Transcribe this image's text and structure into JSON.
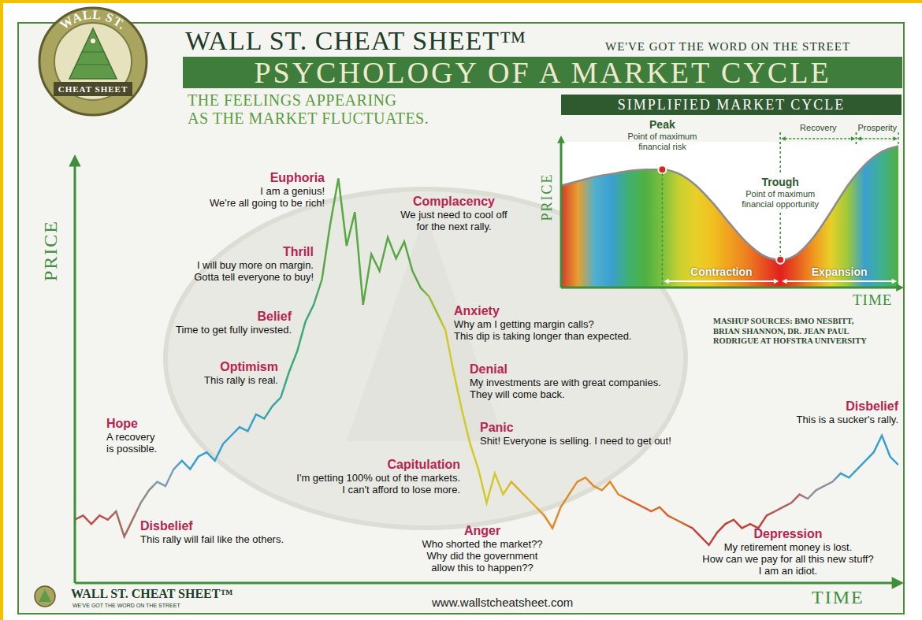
{
  "header": {
    "logo_top": "WALL ST.",
    "logo_bottom": "CHEAT SHEET",
    "brand": "WALL ST. CHEAT SHEET™",
    "tagline": "WE'VE GOT THE WORD ON THE STREET",
    "banner": "PSYCHOLOGY OF A MARKET CYCLE",
    "subtitle": [
      "THE FEELINGS APPEARING",
      "AS THE MARKET FLUCTUATES."
    ]
  },
  "sources": [
    "MASHUP SOURCES: BMO NESBITT,",
    "BRIAN SHANNON, DR. JEAN PAUL",
    "RODRIGUE AT HOFSTRA UNIVERSITY"
  ],
  "footer": {
    "brand": "WALL ST. CHEAT SHEET™",
    "tagline": "WE'VE GOT THE WORD ON THE STREET",
    "url": "www.wallstcheatsheet.com"
  },
  "chart_data": [
    {
      "type": "line",
      "x_label": "TIME",
      "y_label": "PRICE",
      "xlim": [
        0,
        100
      ],
      "ylim": [
        0,
        100
      ],
      "tick_labels": false,
      "x": [
        0,
        1,
        2,
        3,
        4,
        5,
        6,
        7,
        8,
        9,
        10,
        11,
        12,
        13,
        14,
        15,
        16,
        17,
        18,
        19,
        20,
        21,
        22,
        23,
        24,
        25,
        26,
        27,
        28,
        29,
        30,
        31,
        32,
        33,
        34,
        35,
        36,
        37,
        38,
        39,
        40,
        41,
        42,
        43,
        44,
        45,
        46,
        47,
        48,
        49,
        50,
        51,
        52,
        53,
        54,
        55,
        56,
        57,
        58,
        59,
        60,
        61,
        62,
        63,
        64,
        65,
        66,
        67,
        68,
        69,
        70,
        71,
        72,
        73,
        74,
        75,
        76,
        77,
        78,
        79,
        80,
        81,
        82,
        83,
        84,
        85,
        86,
        87,
        88,
        89,
        90,
        91,
        92,
        93,
        94,
        95,
        96,
        97,
        98,
        99,
        100
      ],
      "values": [
        15,
        16,
        14,
        16,
        15,
        17,
        11,
        15,
        19,
        22,
        24,
        23,
        27,
        29,
        27,
        30,
        31,
        29,
        33,
        35,
        37,
        36,
        40,
        39,
        42,
        44,
        50,
        55,
        62,
        66,
        72,
        85,
        96,
        80,
        88,
        66,
        78,
        74,
        82,
        77,
        81,
        74,
        70,
        68,
        64,
        60,
        50,
        41,
        33,
        27,
        19,
        26,
        21,
        24,
        22,
        20,
        18,
        16,
        13,
        18,
        21,
        24,
        25,
        23,
        22,
        24,
        21,
        20,
        19,
        18,
        17,
        18,
        16,
        15,
        14,
        13,
        11,
        9,
        12,
        14,
        15,
        13,
        14,
        13,
        16,
        17,
        18,
        19,
        21,
        20,
        22,
        23,
        24,
        26,
        25,
        27,
        29,
        31,
        35,
        30,
        28
      ],
      "colors": [
        "#c0504d",
        "#c0504d",
        "#c0504d",
        "#c0504d",
        "#c0504d",
        "#a86a60",
        "#a86a60",
        "#a86a60",
        "#8c8c8c",
        "#8c8c8c",
        "#7f9fb5",
        "#7f9fb5",
        "#7f9fb5",
        "#3a9fd0",
        "#3a9fd0",
        "#3a9fd0",
        "#3a9fd0",
        "#3a9fd0",
        "#3a9fd0",
        "#3a9fd0",
        "#3a9fd0",
        "#3a9fd0",
        "#3a9fd0",
        "#3aa6a0",
        "#3aa6a0",
        "#3aa6a0",
        "#3daa7a",
        "#3daa7a",
        "#3daa7a",
        "#3daa7a",
        "#5aa845",
        "#5aa845",
        "#5aa845",
        "#5aa845",
        "#5aa845",
        "#5aa845",
        "#5aa845",
        "#5aa845",
        "#5aa845",
        "#5aa845",
        "#5aa845",
        "#5aa845",
        "#5aa845",
        "#9cbc3a",
        "#9cbc3a",
        "#d4c92a",
        "#d4c92a",
        "#d4c92a",
        "#d4c92a",
        "#d4c92a",
        "#d4c92a",
        "#d4c92a",
        "#d4c92a",
        "#e0b02a",
        "#e0b02a",
        "#e0b02a",
        "#e0b02a",
        "#e08a2a",
        "#e08a2a",
        "#e08a2a",
        "#e08a2a",
        "#e08a2a",
        "#e08a2a",
        "#e08a2a",
        "#e08a2a",
        "#e08a2a",
        "#e08a2a",
        "#d9662a",
        "#d9662a",
        "#d9662a",
        "#d9662a",
        "#d9662a",
        "#d9662a",
        "#d9662a",
        "#d9662a",
        "#c0433a",
        "#c0433a",
        "#c0433a",
        "#c0433a",
        "#c0433a",
        "#c0433a",
        "#c0433a",
        "#c0433a",
        "#c0433a",
        "#c0433a",
        "#b06060",
        "#b06060",
        "#b06060",
        "#b06060",
        "#9090a0",
        "#9090a0",
        "#9090a0",
        "#9090a0",
        "#3a9fd0",
        "#3a9fd0",
        "#3a9fd0",
        "#3a9fd0",
        "#3a9fd0",
        "#3a9fd0",
        "#3a9fd0",
        "#3a9fd0"
      ],
      "annotations": [
        {
          "label": "Disbelief",
          "text": [
            "This rally will fail like the others."
          ]
        },
        {
          "label": "Hope",
          "text": [
            "A recovery",
            "is possible."
          ]
        },
        {
          "label": "Optimism",
          "text": [
            "This rally is real."
          ]
        },
        {
          "label": "Belief",
          "text": [
            "Time to get fully invested."
          ]
        },
        {
          "label": "Thrill",
          "text": [
            "I will buy more on margin.",
            "Gotta tell everyone to buy!"
          ]
        },
        {
          "label": "Euphoria",
          "text": [
            "I am a genius!",
            "We're all going to be rich!"
          ]
        },
        {
          "label": "Complacency",
          "text": [
            "We just need to cool off",
            "for the next rally."
          ]
        },
        {
          "label": "Anxiety",
          "text": [
            "Why am I getting margin calls?",
            "This dip is taking longer than expected."
          ]
        },
        {
          "label": "Denial",
          "text": [
            "My investments are with great companies.",
            "They will come back."
          ]
        },
        {
          "label": "Panic",
          "text": [
            "Shit! Everyone is selling. I need to get out!"
          ]
        },
        {
          "label": "Capitulation",
          "text": [
            "I'm getting 100% out of the markets.",
            "I can't afford to lose more."
          ]
        },
        {
          "label": "Anger",
          "text": [
            "Who shorted the market??",
            "Why did the government",
            "allow this to happen??"
          ]
        },
        {
          "label": "Depression",
          "text": [
            "My retirement money is lost.",
            "How can we pay for all this new stuff?",
            "I am an idiot."
          ]
        },
        {
          "label": "Disbelief",
          "text": [
            "This is a sucker's rally."
          ]
        }
      ]
    },
    {
      "type": "area",
      "title": "SIMPLIFIED MARKET CYCLE",
      "x_label": "TIME",
      "y_label": "PRICE",
      "xlim": [
        0,
        20
      ],
      "ylim": [
        0,
        100
      ],
      "tick_labels": false,
      "x": [
        0,
        1,
        2,
        3,
        4,
        5,
        6,
        7,
        8,
        9,
        10,
        11,
        12,
        13,
        14,
        15,
        16,
        17,
        18,
        19,
        20
      ],
      "values": [
        70,
        73,
        76,
        78,
        80,
        81,
        81,
        78,
        70,
        58,
        44,
        31,
        22,
        19,
        23,
        35,
        52,
        70,
        84,
        93,
        97
      ],
      "colors": [
        "#d63a2a",
        "#e8a030",
        "#50b0d0",
        "#3a9fd0",
        "#40b070",
        "#50b040",
        "#7cc040",
        "#c8d030",
        "#e8d028",
        "#f0c020",
        "#f0a020",
        "#ee8020",
        "#e85020",
        "#e02020",
        "#e85a20",
        "#f09a20",
        "#e8d028",
        "#9cc83a",
        "#3aa0d0",
        "#40b090",
        "#50b040"
      ],
      "annotations": [
        {
          "label": "Peak",
          "text": [
            "Point of maximum",
            "financial risk"
          ],
          "x": 6
        },
        {
          "label": "Trough",
          "text": [
            "Point of maximum",
            "financial opportunity"
          ],
          "x": 13
        }
      ],
      "phases": [
        {
          "label": "Contraction",
          "from": 6,
          "to": 13
        },
        {
          "label": "Expansion",
          "from": 13,
          "to": 20
        }
      ],
      "periods": [
        {
          "label": "Recovery",
          "from": 13,
          "to": 17.5
        },
        {
          "label": "Prosperity",
          "from": 17.5,
          "to": 20
        }
      ]
    }
  ]
}
